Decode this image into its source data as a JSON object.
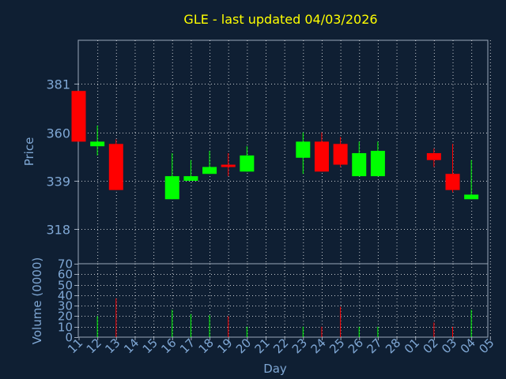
{
  "chart_data": {
    "type": "candlestick",
    "title": "GLE - last updated 04/03/2026",
    "xlabel": "Day",
    "ylabel_price": "Price",
    "ylabel_volume": "Volume (0000)",
    "price_ticks": [
      318,
      339,
      360,
      381
    ],
    "price_range": [
      303,
      400
    ],
    "volume_ticks": [
      0,
      10,
      20,
      30,
      40,
      50,
      60,
      70
    ],
    "volume_range": [
      0,
      70
    ],
    "x_ticks": [
      "11",
      "12",
      "13",
      "14",
      "15",
      "16",
      "17",
      "18",
      "19",
      "20",
      "21",
      "22",
      "23",
      "24",
      "25",
      "26",
      "27",
      "28",
      "01",
      "02",
      "03",
      "04",
      "05"
    ],
    "grid": true,
    "colors": {
      "background": "#0f1f33",
      "title": "#ffff00",
      "axis_text": "#7fa7d4",
      "up": "#00ff00",
      "down": "#ff0000",
      "grid": "#ffffff",
      "frame": "#9aa7b8"
    },
    "candles": [
      {
        "day": "11",
        "open": 378,
        "high": 378,
        "low": 356,
        "close": 356,
        "volume": 0
      },
      {
        "day": "12",
        "open": 354,
        "high": 363,
        "low": 350,
        "close": 356,
        "volume": 20
      },
      {
        "day": "13",
        "open": 355,
        "high": 357,
        "low": 335,
        "close": 335,
        "volume": 37
      },
      {
        "day": "16",
        "open": 331,
        "high": 351,
        "low": 331,
        "close": 341,
        "volume": 26
      },
      {
        "day": "17",
        "open": 339,
        "high": 348,
        "low": 339,
        "close": 341,
        "volume": 22
      },
      {
        "day": "18",
        "open": 342,
        "high": 352,
        "low": 342,
        "close": 345,
        "volume": 21
      },
      {
        "day": "19",
        "open": 346,
        "high": 351,
        "low": 341,
        "close": 345,
        "volume": 20
      },
      {
        "day": "20",
        "open": 343,
        "high": 354,
        "low": 343,
        "close": 350,
        "volume": 10
      },
      {
        "day": "23",
        "open": 349,
        "high": 360,
        "low": 342,
        "close": 356,
        "volume": 10
      },
      {
        "day": "24",
        "open": 356,
        "high": 360,
        "low": 343,
        "close": 343,
        "volume": 10
      },
      {
        "day": "25",
        "open": 355,
        "high": 358,
        "low": 345,
        "close": 346,
        "volume": 29
      },
      {
        "day": "26",
        "open": 341,
        "high": 356,
        "low": 341,
        "close": 351,
        "volume": 10
      },
      {
        "day": "27",
        "open": 341,
        "high": 356,
        "low": 341,
        "close": 352,
        "volume": 10
      },
      {
        "day": "02",
        "open": 351,
        "high": 353,
        "low": 345,
        "close": 348,
        "volume": 14
      },
      {
        "day": "03",
        "open": 342,
        "high": 355,
        "low": 334,
        "close": 335,
        "volume": 10
      },
      {
        "day": "04",
        "open": 331,
        "high": 348,
        "low": 331,
        "close": 333,
        "volume": 26
      }
    ]
  }
}
